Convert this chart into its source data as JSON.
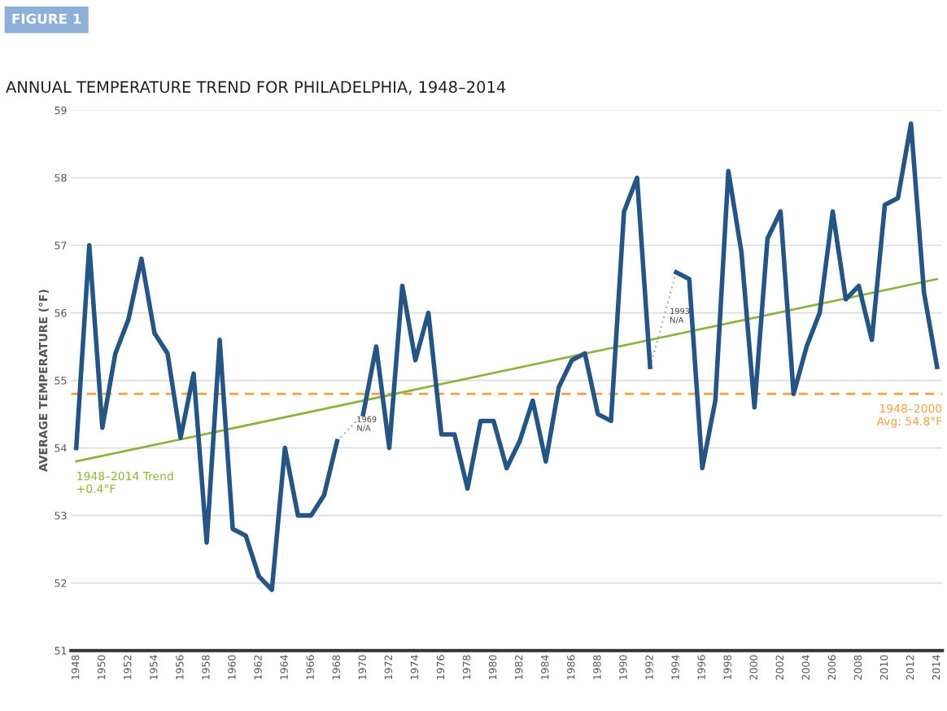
{
  "chart_data": {
    "type": "line",
    "title": "ANNUAL TEMPERATURE TREND FOR PHILADELPHIA, 1948–2014",
    "ylabel": "AVERAGE TEMPERATURE (°F)",
    "x": [
      1948,
      1949,
      1950,
      1951,
      1952,
      1953,
      1954,
      1955,
      1956,
      1957,
      1958,
      1959,
      1960,
      1961,
      1962,
      1963,
      1964,
      1965,
      1966,
      1967,
      1968,
      1969,
      1970,
      1971,
      1972,
      1973,
      1974,
      1975,
      1976,
      1977,
      1978,
      1979,
      1980,
      1981,
      1982,
      1983,
      1984,
      1985,
      1986,
      1987,
      1988,
      1989,
      1990,
      1991,
      1992,
      1993,
      1994,
      1995,
      1996,
      1997,
      1998,
      1999,
      2000,
      2001,
      2002,
      2003,
      2004,
      2005,
      2006,
      2007,
      2008,
      2009,
      2010,
      2011,
      2012,
      2013,
      2014
    ],
    "series": [
      {
        "color": "#aaaaaa",
        "line_style": "dotted",
        "name": "1969\nN/A",
        "x": [
          1968,
          1970
        ],
        "values": [
          54.1,
          54.5
        ]
      },
      {
        "color": "#aaaaaa",
        "line_style": "dotted",
        "name": "1993\nN/A",
        "x": [
          1992,
          1994
        ],
        "values": [
          55.2,
          56.6
        ]
      },
      {
        "color": "#8db33a",
        "line_style": "solid",
        "name": "1948–2014 Trend\n+0.4°F",
        "x": [
          1948,
          2014
        ],
        "values": [
          53.8,
          56.5
        ]
      },
      {
        "color": "#255585",
        "line_style": "solid",
        "values": [
          54.0,
          57.0,
          54.3,
          55.4,
          55.9,
          56.8,
          55.7,
          55.4,
          54.15,
          55.1,
          52.6,
          55.6,
          52.8,
          52.7,
          52.1,
          51.9,
          54.0,
          53.0,
          53.0,
          53.3,
          54.1,
          null,
          54.5,
          55.5,
          54.0,
          56.4,
          55.3,
          56.0,
          54.2,
          54.2,
          53.4,
          54.4,
          54.4,
          53.7,
          54.1,
          54.7,
          53.8,
          54.9,
          55.3,
          55.4,
          54.5,
          54.4,
          57.5,
          58.0,
          55.2,
          null,
          56.6,
          56.5,
          53.7,
          54.7,
          58.1,
          56.9,
          54.6,
          57.1,
          57.5,
          54.8,
          55.5,
          56.0,
          57.5,
          56.2,
          56.4,
          55.6,
          57.6,
          57.7,
          58.8,
          56.3,
          55.2
        ]
      }
    ],
    "ref_lines": [
      {
        "axis": "y",
        "value": 54.8,
        "label": "1948–2000\nAvg: 54.8°F",
        "color": "#f0a040",
        "line_style": "dashed"
      }
    ],
    "annotations": [
      "FIGURE 1"
    ],
    "xlim": [
      1947.6,
      2014.4
    ],
    "xticks": [
      1948,
      1950,
      1952,
      1954,
      1956,
      1958,
      1960,
      1962,
      1964,
      1966,
      1968,
      1970,
      1972,
      1974,
      1976,
      1978,
      1980,
      1982,
      1984,
      1986,
      1988,
      1990,
      1992,
      1994,
      1996,
      1998,
      2000,
      2002,
      2004,
      2006,
      2008,
      2010,
      2012,
      2014
    ],
    "ylim": [
      51,
      59
    ],
    "yticks": [
      51,
      52,
      53,
      54,
      55,
      56,
      57,
      58,
      59
    ],
    "grid": "y",
    "marker": "none",
    "legend": false
  }
}
